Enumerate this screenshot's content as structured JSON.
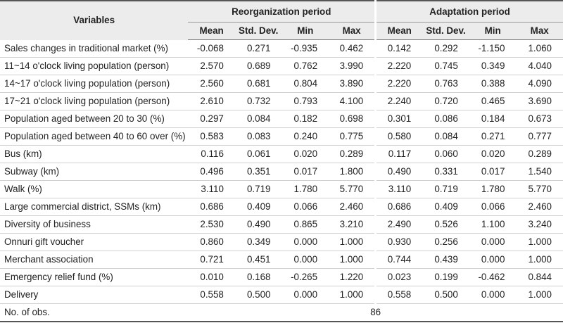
{
  "header": {
    "variables": "Variables",
    "groups": [
      "Reorganization period",
      "Adaptation period"
    ],
    "stats": [
      "Mean",
      "Std. Dev.",
      "Min",
      "Max"
    ]
  },
  "rows": [
    {
      "label": "Sales changes in traditional market (%)",
      "v": [
        "-0.068",
        "0.271",
        "-0.935",
        "0.462",
        "0.142",
        "0.292",
        "-1.150",
        "1.060"
      ]
    },
    {
      "label": "11~14 o'clock living population (person)",
      "v": [
        "2.570",
        "0.689",
        "0.762",
        "3.990",
        "2.220",
        "0.745",
        "0.349",
        "4.040"
      ]
    },
    {
      "label": "14~17 o'clock living population (person)",
      "v": [
        "2.560",
        "0.681",
        "0.804",
        "3.890",
        "2.220",
        "0.763",
        "0.388",
        "4.090"
      ]
    },
    {
      "label": "17~21 o'clock living population (person)",
      "v": [
        "2.610",
        "0.732",
        "0.793",
        "4.100",
        "2.240",
        "0.720",
        "0.465",
        "3.690"
      ]
    },
    {
      "label": "Population aged between 20 to 30 (%)",
      "v": [
        "0.297",
        "0.084",
        "0.182",
        "0.698",
        "0.301",
        "0.086",
        "0.184",
        "0.673"
      ]
    },
    {
      "label": "Population aged between 40 to 60 over (%)",
      "v": [
        "0.583",
        "0.083",
        "0.240",
        "0.775",
        "0.580",
        "0.084",
        "0.271",
        "0.777"
      ]
    },
    {
      "label": "Bus (km)",
      "v": [
        "0.116",
        "0.061",
        "0.020",
        "0.289",
        "0.117",
        "0.060",
        "0.020",
        "0.289"
      ]
    },
    {
      "label": "Subway (km)",
      "v": [
        "0.496",
        "0.351",
        "0.017",
        "1.800",
        "0.490",
        "0.331",
        "0.017",
        "1.540"
      ]
    },
    {
      "label": "Walk (%)",
      "v": [
        "3.110",
        "0.719",
        "1.780",
        "5.770",
        "3.110",
        "0.719",
        "1.780",
        "5.770"
      ]
    },
    {
      "label": "Large commercial district, SSMs (km)",
      "v": [
        "0.686",
        "0.409",
        "0.066",
        "2.460",
        "0.686",
        "0.409",
        "0.066",
        "2.460"
      ]
    },
    {
      "label": "Diversity of business",
      "v": [
        "2.530",
        "0.490",
        "0.865",
        "3.210",
        "2.490",
        "0.526",
        "1.100",
        "3.240"
      ]
    },
    {
      "label": "Onnuri gift voucher",
      "v": [
        "0.860",
        "0.349",
        "0.000",
        "1.000",
        "0.930",
        "0.256",
        "0.000",
        "1.000"
      ]
    },
    {
      "label": "Merchant association",
      "v": [
        "0.721",
        "0.451",
        "0.000",
        "1.000",
        "0.744",
        "0.439",
        "0.000",
        "1.000"
      ]
    },
    {
      "label": "Emergency relief fund (%)",
      "v": [
        "0.010",
        "0.168",
        "-0.265",
        "1.220",
        "0.023",
        "0.199",
        "-0.462",
        "0.844"
      ]
    },
    {
      "label": "Delivery",
      "v": [
        "0.558",
        "0.500",
        "0.000",
        "1.000",
        "0.558",
        "0.500",
        "0.000",
        "1.000"
      ]
    }
  ],
  "footer": {
    "label": "No. of obs.",
    "value": "86"
  }
}
